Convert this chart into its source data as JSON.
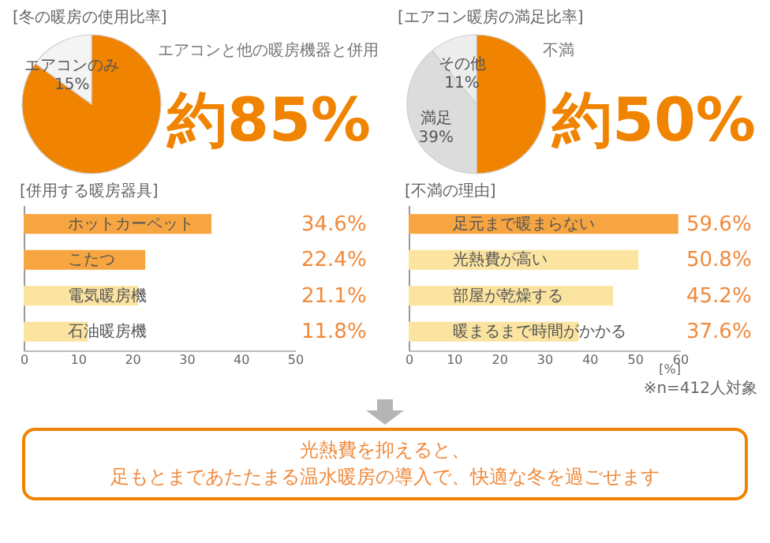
{
  "chart_data": [
    {
      "type": "pie",
      "title": "[冬の暖房の使用比率]",
      "categories": [
        "エアコンと他の暖房機器と併用",
        "エアコンのみ"
      ],
      "values": [
        85,
        15
      ],
      "colors": [
        "#f08300",
        "#f4f4f4"
      ],
      "value_labels": [
        "約85%",
        "15%"
      ]
    },
    {
      "type": "pie",
      "title": "[エアコン暖房の満足比率]",
      "categories": [
        "不満",
        "満足",
        "その他"
      ],
      "values": [
        50,
        39,
        11
      ],
      "colors": [
        "#f08300",
        "#dcdcdc",
        "#ededed"
      ],
      "value_labels": [
        "約50%",
        "39%",
        "11%"
      ]
    },
    {
      "type": "bar",
      "orientation": "horizontal",
      "title": "[併用する暖房器具]",
      "categories": [
        "ホットカーペット",
        "こたつ",
        "電気暖房機",
        "石油暖房機"
      ],
      "values": [
        34.6,
        22.4,
        21.1,
        11.8
      ],
      "colors": [
        "#f7a540",
        "#f7a540",
        "#fbe3a0",
        "#fbe3a0"
      ],
      "value_labels": [
        "34.6%",
        "22.4%",
        "21.1%",
        "11.8%"
      ],
      "xlim": [
        0,
        50
      ],
      "xticks": [
        0,
        10,
        20,
        30,
        40,
        50
      ]
    },
    {
      "type": "bar",
      "orientation": "horizontal",
      "title": "[不満の理由]",
      "categories": [
        "足元まで暖まらない",
        "光熱費が高い",
        "部屋が乾燥する",
        "暖まるまで時間がかかる"
      ],
      "values": [
        59.6,
        50.8,
        45.2,
        37.6
      ],
      "colors": [
        "#f7a540",
        "#fbe3a0",
        "#fbe3a0",
        "#fbe3a0"
      ],
      "value_labels": [
        "59.6%",
        "50.8%",
        "45.2%",
        "37.6%"
      ],
      "xlim": [
        0,
        60
      ],
      "xticks": [
        0,
        10,
        20,
        30,
        40,
        50,
        60
      ],
      "xlabel": "[%]",
      "annotations": [
        "※n=412人対象"
      ]
    },
    {
      "type": "other",
      "annotations": [
        "光熱費を抑えると、",
        "足もとまであたたまる温水暖房の導入で、快適な冬を過ごせます"
      ]
    }
  ]
}
